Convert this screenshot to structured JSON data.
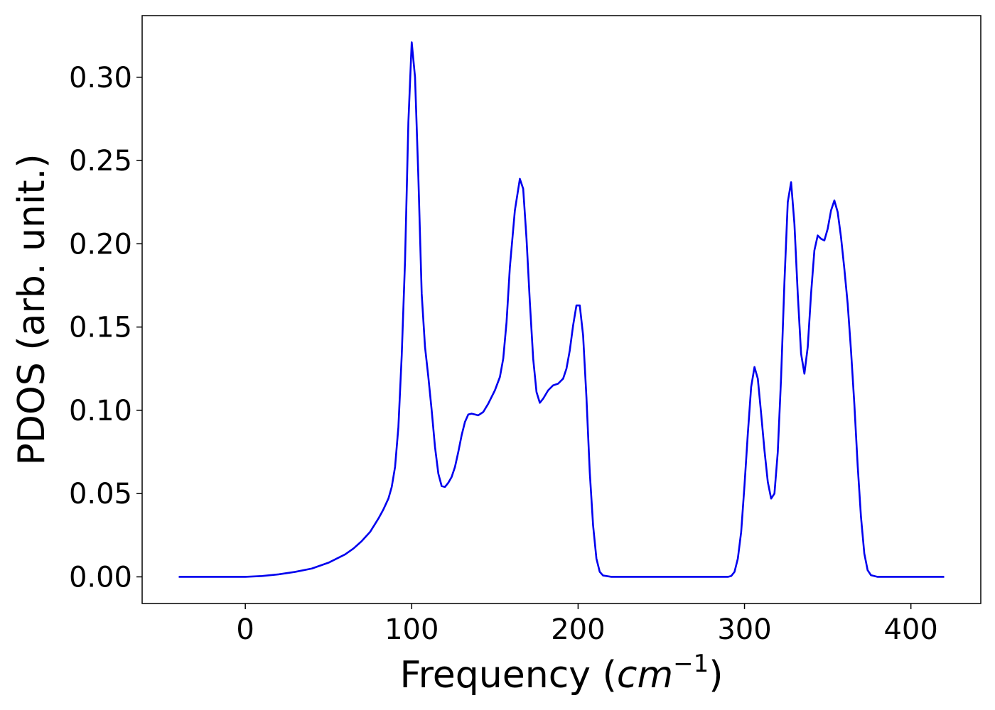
{
  "chart_data": {
    "type": "line",
    "xlabel": "Frequency (cm⁻¹)",
    "xlabel_text": "Frequency (",
    "xlabel_unit": "cm",
    "xlabel_exponent": "−1",
    "xlabel_close": ")",
    "ylabel": "PDOS (arb. unit.)",
    "xlim": [
      -62,
      442
    ],
    "ylim": [
      -0.016,
      0.337
    ],
    "xticks": [
      0,
      100,
      200,
      300,
      400
    ],
    "xtick_labels": [
      "0",
      "100",
      "200",
      "300",
      "400"
    ],
    "yticks": [
      0.0,
      0.05,
      0.1,
      0.15,
      0.2,
      0.25,
      0.3
    ],
    "ytick_labels": [
      "0.00",
      "0.05",
      "0.10",
      "0.15",
      "0.20",
      "0.25",
      "0.30"
    ],
    "grid": false,
    "series": [
      {
        "color": "#0000ee",
        "points": [
          [
            -40,
            0.0
          ],
          [
            -20,
            0.0
          ],
          [
            0,
            0.0
          ],
          [
            10,
            0.0005
          ],
          [
            20,
            0.0015
          ],
          [
            30,
            0.003
          ],
          [
            40,
            0.005
          ],
          [
            50,
            0.0085
          ],
          [
            60,
            0.0135
          ],
          [
            65,
            0.017
          ],
          [
            70,
            0.0215
          ],
          [
            75,
            0.027
          ],
          [
            80,
            0.035
          ],
          [
            83,
            0.0405
          ],
          [
            86,
            0.047
          ],
          [
            88,
            0.054
          ],
          [
            90,
            0.066
          ],
          [
            92,
            0.09
          ],
          [
            94,
            0.133
          ],
          [
            96,
            0.19
          ],
          [
            98,
            0.273
          ],
          [
            100,
            0.321
          ],
          [
            102,
            0.3
          ],
          [
            104,
            0.24
          ],
          [
            106,
            0.17
          ],
          [
            108,
            0.138
          ],
          [
            110,
            0.12
          ],
          [
            112,
            0.1
          ],
          [
            114,
            0.078
          ],
          [
            116,
            0.062
          ],
          [
            118,
            0.0545
          ],
          [
            120,
            0.054
          ],
          [
            122,
            0.0565
          ],
          [
            124,
            0.06
          ],
          [
            126,
            0.066
          ],
          [
            128,
            0.075
          ],
          [
            130,
            0.085
          ],
          [
            132,
            0.093
          ],
          [
            134,
            0.0975
          ],
          [
            136,
            0.098
          ],
          [
            138,
            0.0975
          ],
          [
            140,
            0.097
          ],
          [
            143,
            0.099
          ],
          [
            146,
            0.104
          ],
          [
            150,
            0.112
          ],
          [
            153,
            0.12
          ],
          [
            155,
            0.131
          ],
          [
            157,
            0.153
          ],
          [
            159,
            0.186
          ],
          [
            162,
            0.22
          ],
          [
            165,
            0.239
          ],
          [
            167,
            0.233
          ],
          [
            169,
            0.203
          ],
          [
            171,
            0.165
          ],
          [
            173,
            0.131
          ],
          [
            175,
            0.111
          ],
          [
            177,
            0.1045
          ],
          [
            179,
            0.107
          ],
          [
            182,
            0.112
          ],
          [
            185,
            0.115
          ],
          [
            188,
            0.116
          ],
          [
            191,
            0.119
          ],
          [
            193,
            0.125
          ],
          [
            195,
            0.136
          ],
          [
            197,
            0.151
          ],
          [
            199,
            0.163
          ],
          [
            201,
            0.163
          ],
          [
            203,
            0.145
          ],
          [
            205,
            0.108
          ],
          [
            207,
            0.063
          ],
          [
            209,
            0.031
          ],
          [
            211,
            0.011
          ],
          [
            213,
            0.003
          ],
          [
            215,
            0.0008
          ],
          [
            220,
            0.0
          ],
          [
            240,
            0.0
          ],
          [
            260,
            0.0
          ],
          [
            280,
            0.0
          ],
          [
            290,
            0.0
          ],
          [
            292,
            0.0005
          ],
          [
            294,
            0.003
          ],
          [
            296,
            0.011
          ],
          [
            298,
            0.027
          ],
          [
            300,
            0.055
          ],
          [
            302,
            0.086
          ],
          [
            304,
            0.114
          ],
          [
            306,
            0.126
          ],
          [
            308,
            0.119
          ],
          [
            310,
            0.098
          ],
          [
            312,
            0.076
          ],
          [
            314,
            0.057
          ],
          [
            316,
            0.047
          ],
          [
            318,
            0.05
          ],
          [
            320,
            0.075
          ],
          [
            322,
            0.12
          ],
          [
            324,
            0.177
          ],
          [
            326,
            0.225
          ],
          [
            328,
            0.237
          ],
          [
            330,
            0.212
          ],
          [
            332,
            0.17
          ],
          [
            334,
            0.134
          ],
          [
            336,
            0.122
          ],
          [
            338,
            0.138
          ],
          [
            340,
            0.17
          ],
          [
            342,
            0.196
          ],
          [
            344,
            0.205
          ],
          [
            346,
            0.203
          ],
          [
            348,
            0.202
          ],
          [
            350,
            0.209
          ],
          [
            352,
            0.22
          ],
          [
            354,
            0.226
          ],
          [
            356,
            0.219
          ],
          [
            358,
            0.204
          ],
          [
            360,
            0.185
          ],
          [
            362,
            0.164
          ],
          [
            364,
            0.136
          ],
          [
            366,
            0.104
          ],
          [
            368,
            0.067
          ],
          [
            370,
            0.036
          ],
          [
            372,
            0.014
          ],
          [
            374,
            0.004
          ],
          [
            376,
            0.001
          ],
          [
            380,
            0.0
          ],
          [
            400,
            0.0
          ],
          [
            420,
            0.0
          ]
        ]
      }
    ]
  }
}
